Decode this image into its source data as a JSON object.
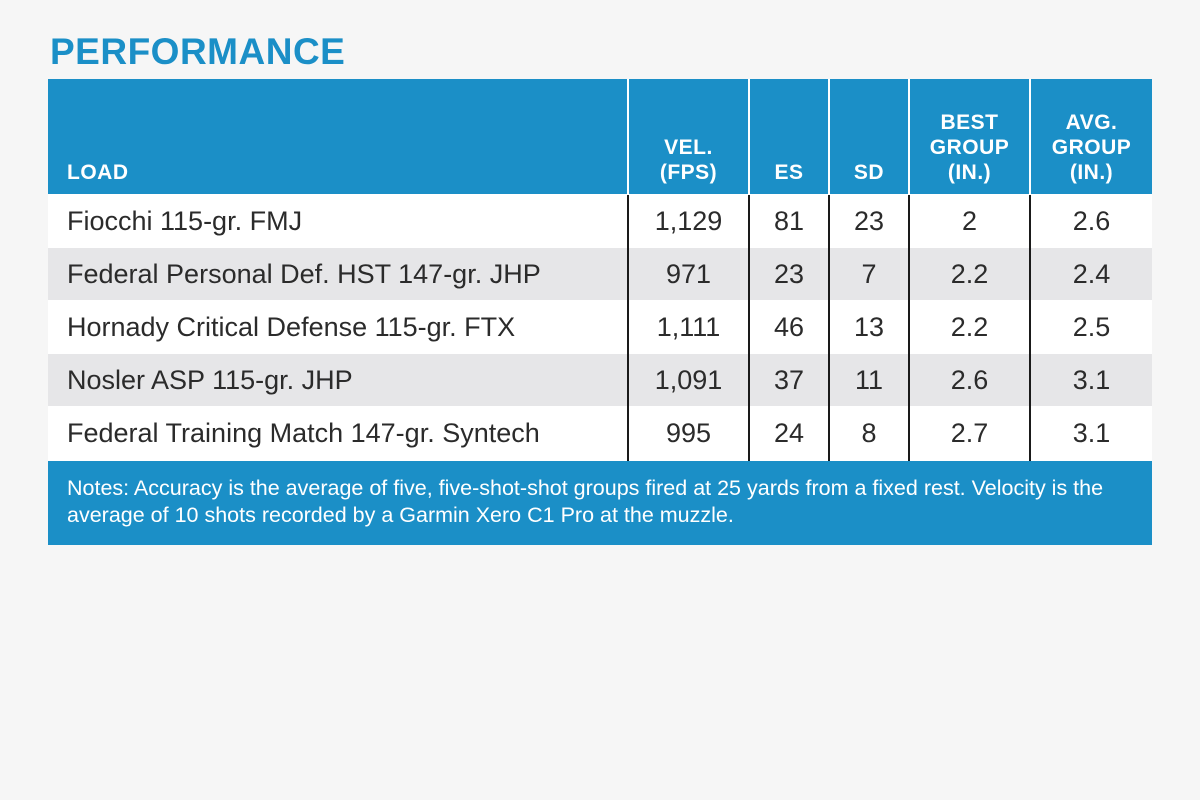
{
  "title": "PERFORMANCE",
  "table": {
    "headers": {
      "load": "LOAD",
      "vel": "VEL.\n(FPS)",
      "es": "ES",
      "sd": "SD",
      "best": "BEST\nGROUP\n(IN.)",
      "avg": "AVG.\nGROUP\n(IN.)"
    },
    "rows": [
      {
        "load": "Fiocchi 115-gr. FMJ",
        "vel": "1,129",
        "es": "81",
        "sd": "23",
        "best": "2",
        "avg": "2.6"
      },
      {
        "load": "Federal Personal Def. HST 147-gr. JHP",
        "vel": "971",
        "es": "23",
        "sd": "7",
        "best": "2.2",
        "avg": "2.4"
      },
      {
        "load": "Hornady Critical Defense 115-gr. FTX",
        "vel": "1,111",
        "es": "46",
        "sd": "13",
        "best": "2.2",
        "avg": "2.5"
      },
      {
        "load": "Nosler ASP 115-gr. JHP",
        "vel": "1,091",
        "es": "37",
        "sd": "11",
        "best": "2.6",
        "avg": "3.1"
      },
      {
        "load": "Federal Training Match 147-gr. Syntech",
        "vel": "995",
        "es": "24",
        "sd": "8",
        "best": "2.7",
        "avg": "3.1"
      }
    ]
  },
  "notes": {
    "label": "Notes:",
    "text": " Accuracy is the average of five, five-shot-shot groups fired at 25 yards from a fixed rest. Velocity is the average of 10 shots recorded by a Garmin Xero C1 Pro at the muzzle."
  },
  "colors": {
    "accent": "#1b8fc7",
    "row_alt": "#e6e6e8",
    "background": "#f6f6f6"
  }
}
